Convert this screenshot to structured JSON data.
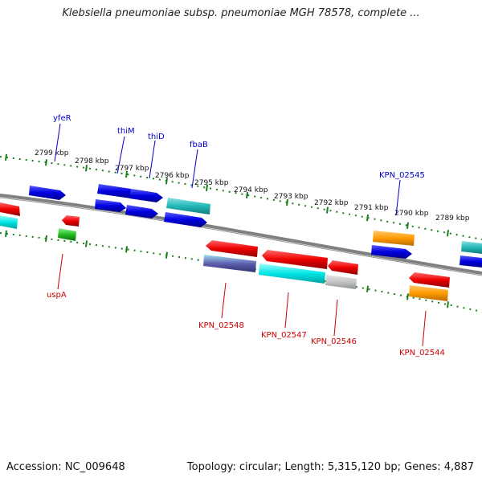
{
  "title": "Klebsiella pneumoniae subsp. pneumoniae MGH 78578, complete ...",
  "footer": {
    "accession": "Accession: NC_009648",
    "summary": "Topology: circular; Length: 5,315,120 bp; Genes: 4,887"
  },
  "colors": {
    "forward_label": "#0000cc",
    "reverse_label": "#cc0000",
    "scale": "#1a7f1a",
    "backbone": "#808080"
  },
  "ticks": [
    {
      "label": "2799 kbp"
    },
    {
      "label": "2798 kbp"
    },
    {
      "label": "2797 kbp"
    },
    {
      "label": "2796 kbp"
    },
    {
      "label": "2795 kbp"
    },
    {
      "label": "2794 kbp"
    },
    {
      "label": "2793 kbp"
    },
    {
      "label": "2792 kbp"
    },
    {
      "label": "2791 kbp"
    },
    {
      "label": "2790 kbp"
    },
    {
      "label": "2789 kbp"
    }
  ],
  "labels": {
    "forward": [
      "yfeR",
      "thiM",
      "thiD",
      "fbaB",
      "KPN_02545"
    ],
    "reverse": [
      "uspA",
      "KPN_02548",
      "KPN_02547",
      "KPN_02546",
      "KPN_02544"
    ]
  }
}
